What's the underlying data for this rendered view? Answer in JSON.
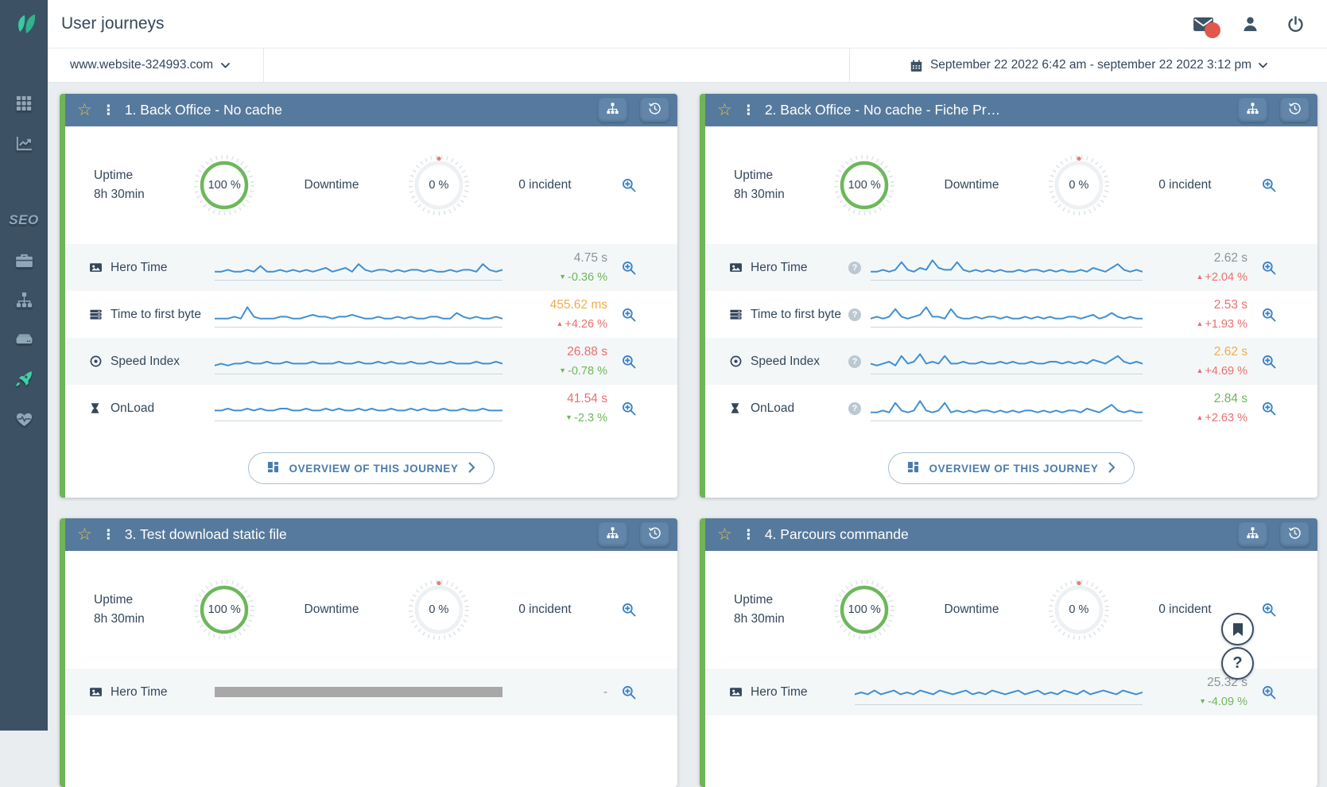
{
  "topbar": {
    "title": "User journeys"
  },
  "filterbar": {
    "site": "www.website-324993.com",
    "date_range": "September 22 2022 6:42 am - september 22 2022 3:12 pm"
  },
  "sidebar": {
    "seo_label": "SEO",
    "items": [
      "apps-grid",
      "analytics-chart",
      "seo",
      "toolbox",
      "sitemap",
      "server",
      "user-journeys-rocket-active",
      "health-heartbeat"
    ]
  },
  "colors": {
    "sidebar": "#3c5164",
    "accent_teal": "#3fd1a4",
    "card_header": "#567a9d",
    "stripe_green": "#6fb457",
    "spark_blue": "#3f90d2",
    "green": "#6cb85b",
    "red": "#e8716d",
    "orange": "#f0ad4e",
    "navy": "#33475b"
  },
  "floating": {
    "help_label": "?"
  },
  "cards": [
    {
      "title": "1. Back Office - No cache",
      "uptime": {
        "label": "Uptime",
        "duration": "8h 30min",
        "value": "100 %"
      },
      "downtime": {
        "label": "Downtime",
        "value": "0 %"
      },
      "incidents": "0 incident",
      "overview_label": "OVERVIEW OF THIS JOURNEY",
      "metrics": [
        {
          "label": "Hero Time",
          "value": "4.75 s",
          "value_color": "muted",
          "delta": "-0.36 %",
          "delta_color": "green",
          "delta_icon": "▼",
          "spark": [
            3,
            3,
            4,
            3,
            3,
            4,
            3,
            6,
            3,
            3,
            4,
            3,
            4,
            3,
            4,
            3,
            4,
            5,
            3,
            4,
            5,
            3,
            7,
            4,
            3,
            4,
            4,
            3,
            4,
            3,
            4,
            4,
            3,
            4,
            3,
            3,
            4,
            3,
            4,
            4,
            3,
            7,
            4,
            3,
            4
          ]
        },
        {
          "label": "Time to first byte",
          "value": "455.62 ms",
          "value_color": "orange",
          "delta": "+4.26 %",
          "delta_color": "red",
          "delta_icon": "▲",
          "spark": [
            3,
            3,
            3,
            4,
            3,
            9,
            4,
            3,
            3,
            3,
            4,
            4,
            3,
            3,
            4,
            5,
            4,
            4,
            3,
            4,
            4,
            5,
            4,
            3,
            3,
            4,
            3,
            3,
            4,
            3,
            4,
            3,
            3,
            4,
            4,
            3,
            3,
            6,
            4,
            3,
            4,
            3,
            3,
            4,
            3
          ]
        },
        {
          "label": "Speed Index",
          "value": "26.88 s",
          "value_color": "red",
          "delta": "-0.78 %",
          "delta_color": "green",
          "delta_icon": "▼",
          "spark": [
            3,
            4,
            3,
            4,
            4,
            5,
            4,
            4,
            5,
            4,
            4,
            5,
            4,
            4,
            4,
            5,
            4,
            4,
            4,
            5,
            4,
            4,
            5,
            4,
            4,
            5,
            4,
            5,
            4,
            4,
            5,
            4,
            4,
            5,
            4,
            4,
            5,
            4,
            4,
            4,
            5,
            4,
            4,
            5,
            4
          ]
        },
        {
          "label": "OnLoad",
          "value": "41.54 s",
          "value_color": "red",
          "delta": "-2.3 %",
          "delta_color": "green",
          "delta_icon": "▼",
          "spark": [
            4,
            4,
            5,
            4,
            4,
            5,
            4,
            5,
            4,
            4,
            5,
            5,
            4,
            4,
            5,
            4,
            4,
            5,
            4,
            5,
            4,
            4,
            5,
            4,
            5,
            4,
            4,
            5,
            4,
            4,
            5,
            4,
            5,
            4,
            4,
            5,
            4,
            4,
            5,
            4,
            4,
            5,
            4,
            4,
            4
          ]
        }
      ]
    },
    {
      "title": "2. Back Office - No cache - Fiche Pr…",
      "uptime": {
        "label": "Uptime",
        "duration": "8h 30min",
        "value": "100 %"
      },
      "downtime": {
        "label": "Downtime",
        "value": "0 %"
      },
      "incidents": "0 incident",
      "overview_label": "OVERVIEW OF THIS JOURNEY",
      "metrics": [
        {
          "label": "Hero Time",
          "value": "2.62 s",
          "value_color": "muted",
          "delta": "+2.04 %",
          "delta_color": "red",
          "delta_icon": "▲",
          "spark": [
            3,
            3,
            4,
            3,
            4,
            8,
            4,
            3,
            5,
            4,
            9,
            5,
            4,
            4,
            8,
            4,
            3,
            4,
            3,
            4,
            3,
            4,
            3,
            3,
            4,
            3,
            4,
            4,
            3,
            4,
            3,
            4,
            3,
            3,
            4,
            3,
            5,
            4,
            3,
            5,
            7,
            4,
            3,
            4,
            3
          ]
        },
        {
          "label": "Time to first byte",
          "value": "2.53 s",
          "value_color": "red",
          "delta": "+1.93 %",
          "delta_color": "red",
          "delta_icon": "▲",
          "spark": [
            3,
            4,
            3,
            4,
            8,
            4,
            3,
            4,
            5,
            9,
            4,
            4,
            3,
            8,
            4,
            3,
            3,
            4,
            3,
            4,
            4,
            3,
            4,
            3,
            3,
            4,
            3,
            4,
            3,
            4,
            3,
            3,
            4,
            4,
            3,
            4,
            5,
            3,
            4,
            6,
            4,
            3,
            4,
            3,
            3
          ]
        },
        {
          "label": "Speed Index",
          "value": "2.62 s",
          "value_color": "orange",
          "delta": "+4.69 %",
          "delta_color": "red",
          "delta_icon": "▲",
          "spark": [
            4,
            3,
            4,
            5,
            3,
            8,
            4,
            5,
            9,
            4,
            5,
            4,
            8,
            4,
            4,
            5,
            4,
            4,
            5,
            4,
            4,
            5,
            4,
            5,
            4,
            4,
            5,
            4,
            4,
            5,
            5,
            4,
            5,
            4,
            5,
            4,
            6,
            5,
            4,
            6,
            8,
            5,
            4,
            5,
            4
          ]
        },
        {
          "label": "OnLoad",
          "value": "2.84 s",
          "value_color": "green",
          "delta": "+2.63 %",
          "delta_color": "red",
          "delta_icon": "▲",
          "spark": [
            3,
            3,
            4,
            3,
            8,
            4,
            3,
            4,
            9,
            4,
            3,
            4,
            8,
            3,
            4,
            3,
            4,
            3,
            4,
            4,
            3,
            4,
            3,
            4,
            3,
            4,
            4,
            3,
            4,
            3,
            4,
            3,
            4,
            4,
            3,
            5,
            4,
            3,
            5,
            7,
            4,
            3,
            4,
            3,
            3
          ]
        }
      ]
    },
    {
      "title": "3. Test download static file",
      "uptime": {
        "label": "Uptime",
        "duration": "8h 30min",
        "value": "100 %"
      },
      "downtime": {
        "label": "Downtime",
        "value": "0 %"
      },
      "incidents": "0 incident",
      "metrics": [
        {
          "label": "Hero Time",
          "value": "-",
          "value_color": "muted",
          "spark_type": "bar"
        }
      ]
    },
    {
      "title": "4. Parcours commande",
      "uptime": {
        "label": "Uptime",
        "duration": "8h 30min",
        "value": "100 %"
      },
      "downtime": {
        "label": "Downtime",
        "value": "0 %"
      },
      "incidents": "0 incident",
      "metrics": [
        {
          "label": "Hero Time",
          "value": "25.32 s",
          "value_color": "muted",
          "delta": "-4.09 %",
          "delta_color": "green",
          "delta_icon": "▼",
          "spark": [
            4,
            5,
            4,
            6,
            4,
            5,
            6,
            4,
            5,
            4,
            6,
            5,
            4,
            6,
            5,
            4,
            5,
            6,
            4,
            5,
            4,
            6,
            5,
            4,
            5,
            6,
            4,
            5,
            6,
            4,
            5,
            4,
            6,
            5,
            4,
            6,
            4,
            5,
            6,
            5,
            4,
            6,
            5,
            4,
            5
          ]
        }
      ]
    }
  ]
}
